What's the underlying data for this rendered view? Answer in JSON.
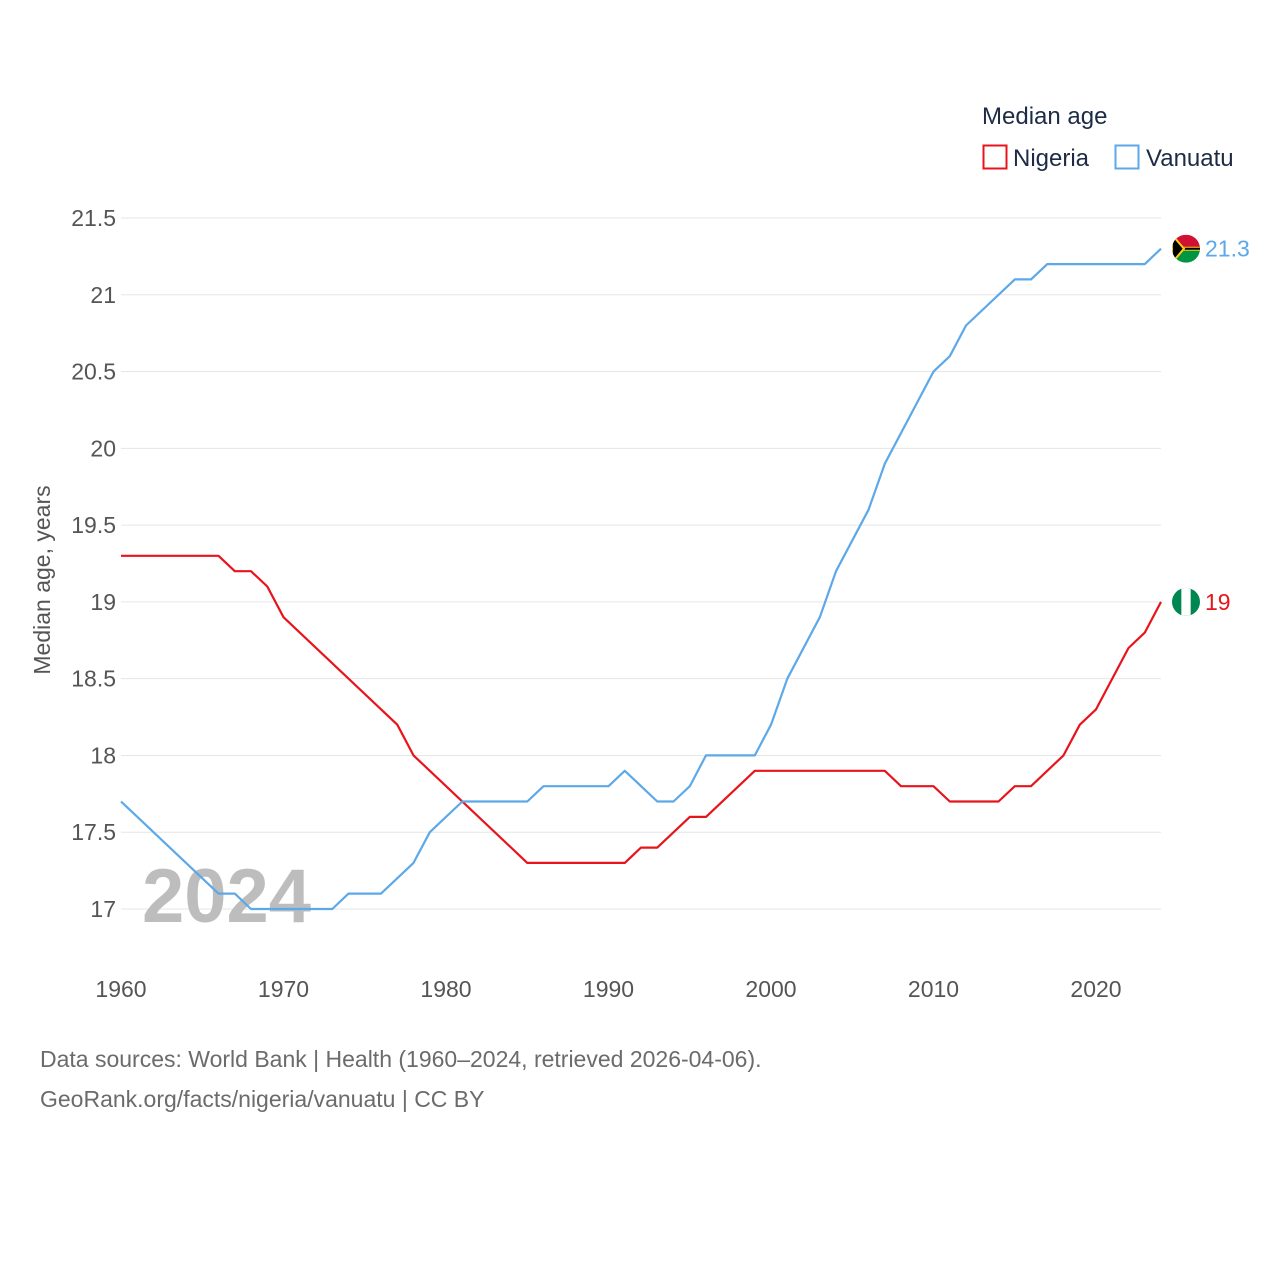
{
  "colors": {
    "nigeria": "#e8141b",
    "vanuatu": "#5ca8e8",
    "grid": "#e6e6e6",
    "watermark": "#bdbdbd"
  },
  "year_label": "2024",
  "footer": {
    "sources": "Data sources: World Bank | Health (1960–2024, retrieved 2026-04-06).",
    "attribution": "GeoRank.org/facts/nigeria/vanuatu | CC BY"
  },
  "chart_data": {
    "type": "line",
    "title": "",
    "ylabel": "Median age, years",
    "xlabel": "",
    "legend_title": "Median age",
    "legend_position": "top-right",
    "xlim": [
      1960,
      2024
    ],
    "ylim": [
      16.85,
      21.5
    ],
    "grid": true,
    "x_ticks": [
      1960,
      1970,
      1980,
      1990,
      2000,
      2010,
      2020
    ],
    "y_ticks": [
      17,
      17.5,
      18,
      18.5,
      19,
      19.5,
      20,
      20.5,
      21,
      21.5
    ],
    "series": [
      {
        "name": "Nigeria",
        "color": "#e8141b",
        "flag_icon": "nigeria-flag-icon",
        "end_label": "19",
        "x": [
          1960,
          1966,
          1967,
          1968,
          1969,
          1970,
          1977,
          1978,
          1985,
          1991,
          1992,
          1993,
          1995,
          1996,
          1999,
          2007,
          2008,
          2010,
          2011,
          2014,
          2015,
          2016,
          2018,
          2019,
          2020,
          2022,
          2023,
          2024
        ],
        "values": [
          19.3,
          19.3,
          19.2,
          19.2,
          19.1,
          18.9,
          18.2,
          18.0,
          17.3,
          17.3,
          17.4,
          17.4,
          17.6,
          17.6,
          17.9,
          17.9,
          17.8,
          17.8,
          17.7,
          17.7,
          17.8,
          17.8,
          18.0,
          18.2,
          18.3,
          18.7,
          18.8,
          19.0
        ]
      },
      {
        "name": "Vanuatu",
        "color": "#5ca8e8",
        "flag_icon": "vanuatu-flag-icon",
        "end_label": "21.3",
        "x": [
          1960,
          1966,
          1967,
          1968,
          1973,
          1974,
          1976,
          1978,
          1979,
          1981,
          1985,
          1986,
          1990,
          1991,
          1993,
          1994,
          1995,
          1996,
          1999,
          2000,
          2001,
          2003,
          2004,
          2006,
          2007,
          2010,
          2011,
          2012,
          2015,
          2016,
          2017,
          2023,
          2024
        ],
        "values": [
          17.7,
          17.1,
          17.1,
          17.0,
          17.0,
          17.1,
          17.1,
          17.3,
          17.5,
          17.7,
          17.7,
          17.8,
          17.8,
          17.9,
          17.7,
          17.7,
          17.8,
          18.0,
          18.0,
          18.2,
          18.5,
          18.9,
          19.2,
          19.6,
          19.9,
          20.5,
          20.6,
          20.8,
          21.1,
          21.1,
          21.2,
          21.2,
          21.3
        ]
      }
    ]
  }
}
